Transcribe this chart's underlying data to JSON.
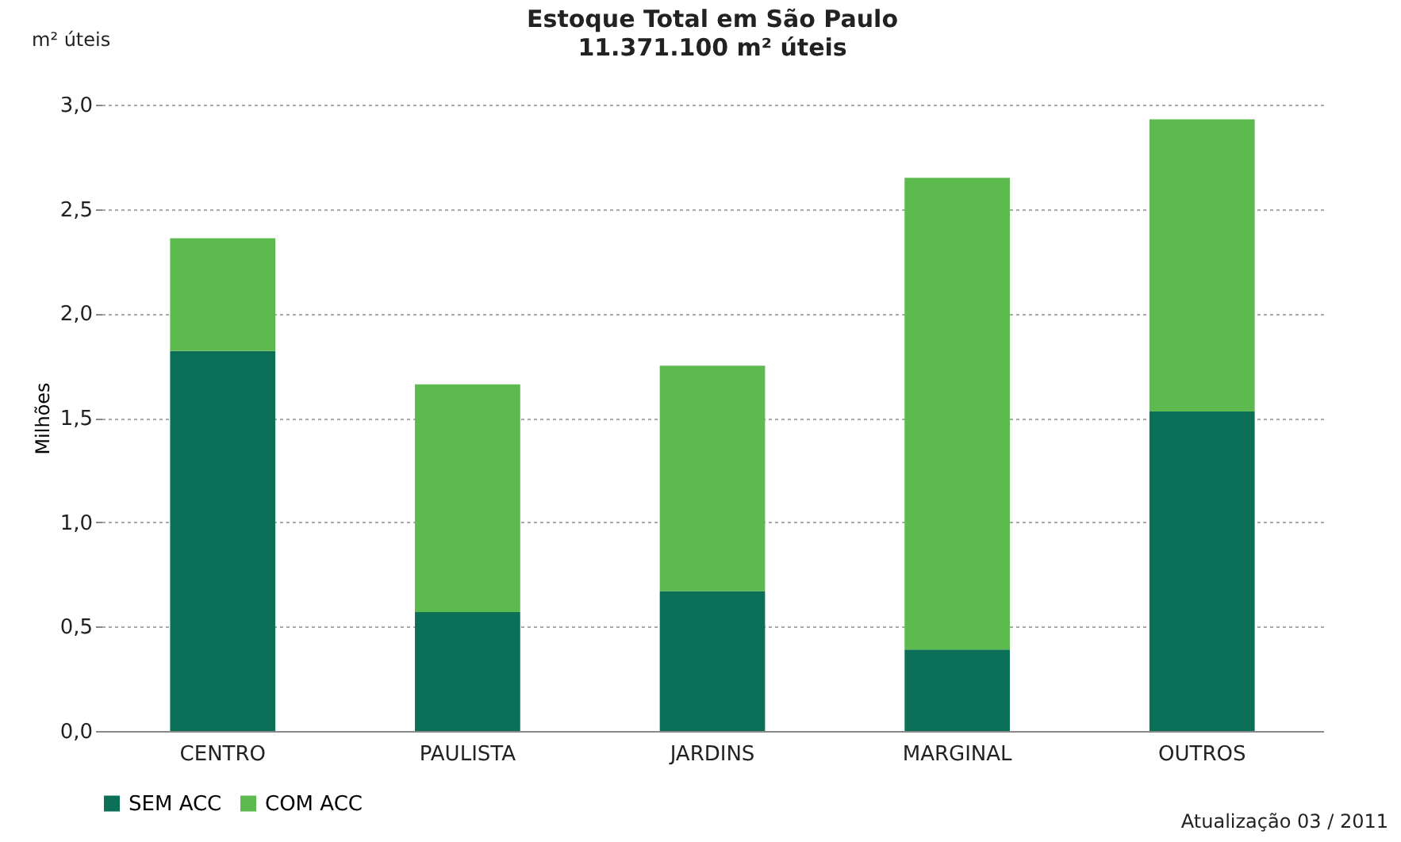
{
  "chart_data": {
    "type": "bar",
    "title": "Estoque Total em São Paulo",
    "subtitle": "11.371.100 m² úteis",
    "ylabel": "Milhões",
    "stacked": true,
    "categories": [
      "CENTRO",
      "PAULISTA",
      "JARDINS",
      "MARGINAL",
      "OUTROS"
    ],
    "series": [
      {
        "name": "SEM ACC",
        "color": "#0b7057",
        "values": [
          1.82,
          0.57,
          0.67,
          0.39,
          1.53
        ]
      },
      {
        "name": "COM ACC",
        "color": "#5dba4e",
        "values": [
          0.54,
          1.09,
          1.08,
          2.26,
          1.4
        ]
      }
    ],
    "ylim": [
      0,
      3
    ],
    "yticks": [
      {
        "value": 0,
        "label": "0,0"
      },
      {
        "value": 0.5,
        "label": "0,5"
      },
      {
        "value": 1,
        "label": "1,0"
      },
      {
        "value": 1.5,
        "label": "1,5"
      },
      {
        "value": 2,
        "label": "2,0"
      },
      {
        "value": 2.5,
        "label": "2,5"
      },
      {
        "value": 3,
        "label": "3,0"
      }
    ],
    "grid": "y",
    "legend": "bottom",
    "annotations": [
      "m² úteis",
      "Atualização 03 / 2011"
    ]
  }
}
